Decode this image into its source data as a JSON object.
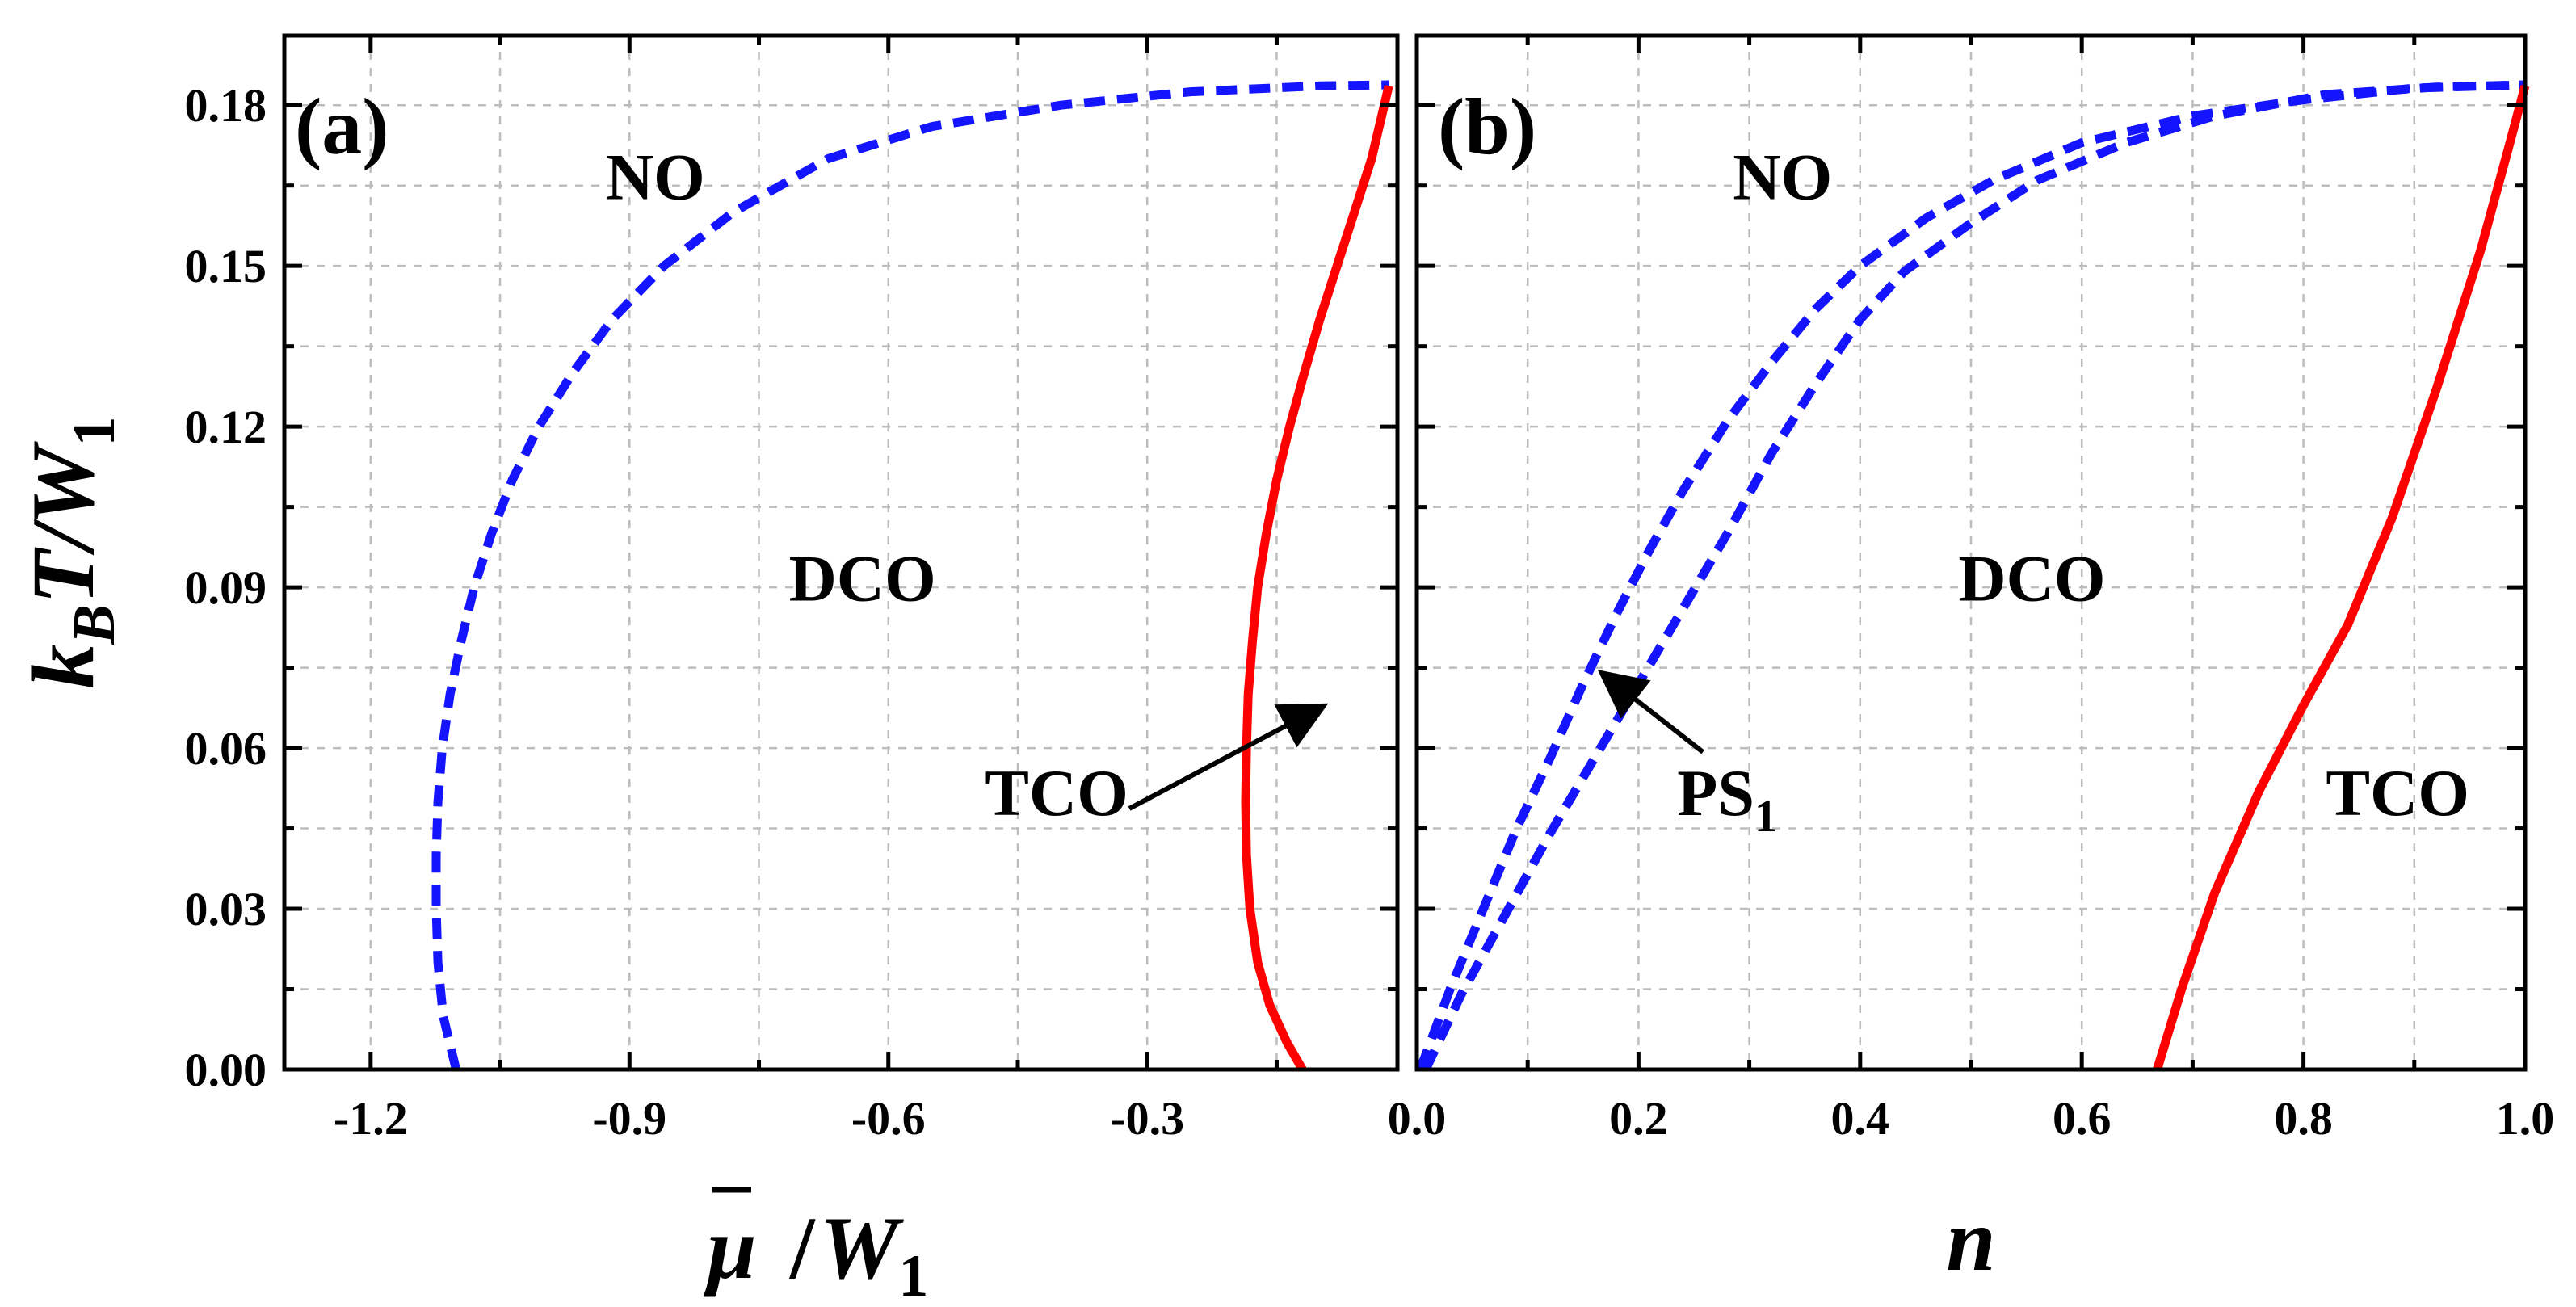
{
  "chart_data": [
    {
      "type": "line",
      "panel_label": "(a)",
      "xlabel": {
        "main": "μ",
        "slash": "/",
        "sym": "W",
        "sub": "1"
      },
      "ylabel": {
        "k": "k",
        "ksub": "B",
        "rest": "T/W",
        "sub": "1"
      },
      "xlim": [
        -1.3,
        -0.01
      ],
      "ylim": [
        0.0,
        0.193
      ],
      "xticks": [
        -1.2,
        -0.9,
        -0.6,
        -0.3
      ],
      "xtick_labels": [
        "-1.2",
        "-0.9",
        "-0.6",
        "-0.3"
      ],
      "yticks": [
        0.0,
        0.03,
        0.06,
        0.09,
        0.12,
        0.15,
        0.18
      ],
      "ytick_labels": [
        "0.00",
        "0.03",
        "0.06",
        "0.09",
        "0.12",
        "0.15",
        "0.18"
      ],
      "series": [
        {
          "name": "NO-DCO boundary",
          "color": "#1414ff",
          "style": "dashed",
          "points": [
            [
              -1.101,
              0.0
            ],
            [
              -1.116,
              0.01
            ],
            [
              -1.122,
              0.02
            ],
            [
              -1.124,
              0.03
            ],
            [
              -1.124,
              0.04
            ],
            [
              -1.122,
              0.05
            ],
            [
              -1.117,
              0.06
            ],
            [
              -1.108,
              0.07
            ],
            [
              -1.095,
              0.08
            ],
            [
              -1.08,
              0.09
            ],
            [
              -1.06,
              0.1
            ],
            [
              -1.036,
              0.11
            ],
            [
              -1.005,
              0.12
            ],
            [
              -0.966,
              0.13
            ],
            [
              -0.92,
              0.14
            ],
            [
              -0.86,
              0.15
            ],
            [
              -0.78,
              0.16
            ],
            [
              -0.67,
              0.17
            ],
            [
              -0.55,
              0.176
            ],
            [
              -0.4,
              0.18
            ],
            [
              -0.25,
              0.1825
            ],
            [
              -0.1,
              0.1836
            ],
            [
              -0.02,
              0.1838
            ]
          ]
        },
        {
          "name": "DCO-TCO boundary",
          "color": "#ff0000",
          "style": "solid",
          "points": [
            [
              -0.12,
              0.0
            ],
            [
              -0.138,
              0.005
            ],
            [
              -0.158,
              0.012
            ],
            [
              -0.172,
              0.02
            ],
            [
              -0.181,
              0.03
            ],
            [
              -0.185,
              0.04
            ],
            [
              -0.186,
              0.05
            ],
            [
              -0.185,
              0.06
            ],
            [
              -0.183,
              0.07
            ],
            [
              -0.178,
              0.08
            ],
            [
              -0.172,
              0.09
            ],
            [
              -0.162,
              0.1
            ],
            [
              -0.15,
              0.11
            ],
            [
              -0.135,
              0.12
            ],
            [
              -0.118,
              0.13
            ],
            [
              -0.1,
              0.14
            ],
            [
              -0.08,
              0.15
            ],
            [
              -0.06,
              0.16
            ],
            [
              -0.04,
              0.17
            ],
            [
              -0.02,
              0.1836
            ]
          ]
        }
      ],
      "annotations": [
        {
          "text": "NO",
          "x": -0.87,
          "y": 0.1625
        },
        {
          "text": "DCO",
          "x": -0.63,
          "y": 0.0875
        },
        {
          "text": "TCO",
          "x": -0.405,
          "y": 0.0475,
          "arrow_to": [
            -0.1,
            0.0675
          ]
        }
      ]
    },
    {
      "type": "line",
      "panel_label": "(b)",
      "xlabel": {
        "main": "n"
      },
      "xlim": [
        0.0,
        1.0
      ],
      "ylim": [
        0.0,
        0.193
      ],
      "xticks": [
        0.0,
        0.2,
        0.4,
        0.6,
        0.8,
        1.0
      ],
      "xtick_labels": [
        "0.0",
        "0.2",
        "0.4",
        "0.6",
        "0.8",
        "1.0"
      ],
      "yticks": [
        0.0,
        0.03,
        0.06,
        0.09,
        0.12,
        0.15,
        0.18
      ],
      "series": [
        {
          "name": "PS1 boundary (left)",
          "color": "#1414ff",
          "style": "dashed",
          "points": [
            [
              0.003,
              0.0
            ],
            [
              0.03,
              0.015
            ],
            [
              0.06,
              0.03
            ],
            [
              0.09,
              0.045
            ],
            [
              0.12,
              0.058
            ],
            [
              0.15,
              0.072
            ],
            [
              0.18,
              0.085
            ],
            [
              0.21,
              0.097
            ],
            [
              0.24,
              0.108
            ],
            [
              0.28,
              0.121
            ],
            [
              0.32,
              0.132
            ],
            [
              0.36,
              0.142
            ],
            [
              0.4,
              0.15
            ],
            [
              0.46,
              0.159
            ],
            [
              0.52,
              0.166
            ],
            [
              0.6,
              0.173
            ],
            [
              0.7,
              0.178
            ],
            [
              0.8,
              0.181
            ],
            [
              0.9,
              0.1832
            ],
            [
              1.0,
              0.1838
            ]
          ]
        },
        {
          "name": "PS1 boundary (right)",
          "color": "#1414ff",
          "style": "dashed",
          "points": [
            [
              0.008,
              0.0
            ],
            [
              0.04,
              0.014
            ],
            [
              0.08,
              0.029
            ],
            [
              0.12,
              0.044
            ],
            [
              0.16,
              0.058
            ],
            [
              0.2,
              0.072
            ],
            [
              0.24,
              0.086
            ],
            [
              0.28,
              0.1
            ],
            [
              0.32,
              0.115
            ],
            [
              0.36,
              0.128
            ],
            [
              0.4,
              0.14
            ],
            [
              0.44,
              0.149
            ],
            [
              0.5,
              0.158
            ],
            [
              0.56,
              0.166
            ],
            [
              0.64,
              0.173
            ],
            [
              0.72,
              0.178
            ],
            [
              0.82,
              0.182
            ],
            [
              0.92,
              0.1834
            ],
            [
              1.0,
              0.1838
            ]
          ]
        },
        {
          "name": "DCO-TCO boundary",
          "color": "#ff0000",
          "style": "solid",
          "points": [
            [
              0.668,
              0.0
            ],
            [
              0.69,
              0.015
            ],
            [
              0.72,
              0.033
            ],
            [
              0.76,
              0.052
            ],
            [
              0.8,
              0.068
            ],
            [
              0.84,
              0.083
            ],
            [
              0.88,
              0.103
            ],
            [
              0.92,
              0.127
            ],
            [
              0.96,
              0.153
            ],
            [
              0.985,
              0.172
            ],
            [
              1.0,
              0.1836
            ]
          ]
        }
      ],
      "annotations": [
        {
          "text": "NO",
          "x": 0.33,
          "y": 0.1625
        },
        {
          "text": "DCO",
          "x": 0.555,
          "y": 0.0875
        },
        {
          "text": "TCO",
          "x": 0.885,
          "y": 0.0475
        },
        {
          "text": "PS",
          "sub": "1",
          "x": 0.28,
          "y": 0.0475,
          "arrow_to": [
            0.17,
            0.0735
          ]
        }
      ]
    }
  ]
}
